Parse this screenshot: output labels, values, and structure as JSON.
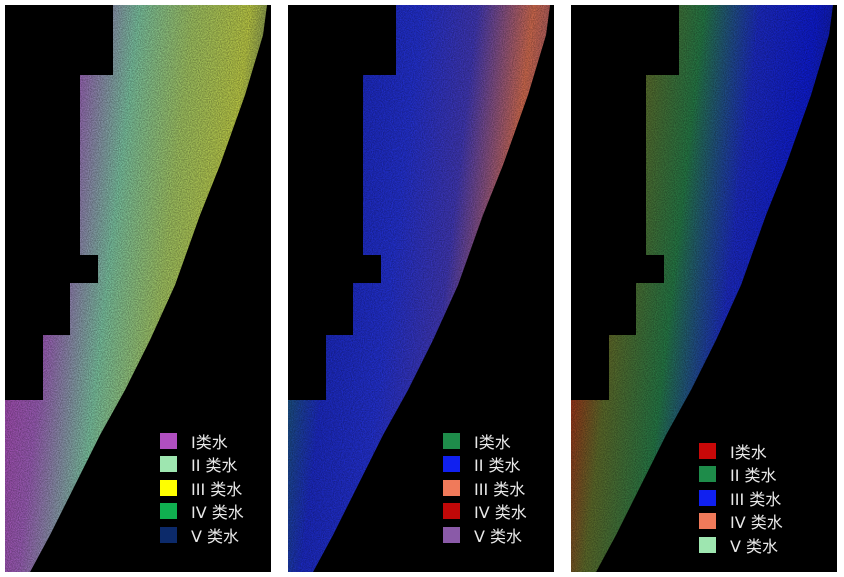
{
  "panels": [
    {
      "legend": [
        {
          "label": "I类水",
          "color": "#b04fc0"
        },
        {
          "label": "II 类水",
          "color": "#9ee6b0"
        },
        {
          "label": "III 类水",
          "color": "#ffff00"
        },
        {
          "label": "IV 类水",
          "color": "#10b050"
        },
        {
          "label": "V 类水",
          "color": "#0c2a6a"
        }
      ],
      "gradient": [
        "#c04cc8",
        "#b06ad0",
        "#8de0b8",
        "#b8e070",
        "#d8e850",
        "#2a4a70"
      ]
    },
    {
      "legend": [
        {
          "label": "I类水",
          "color": "#1e8c4a"
        },
        {
          "label": "II 类水",
          "color": "#1020f0"
        },
        {
          "label": "III 类水",
          "color": "#f07a5a"
        },
        {
          "label": "IV 类水",
          "color": "#c00808"
        },
        {
          "label": "V 类水",
          "color": "#8a5aa8"
        }
      ],
      "gradient": [
        "#1e7a60",
        "#2030e0",
        "#2838f0",
        "#4a40d0",
        "#f07a5a",
        "#7a4a8a"
      ]
    },
    {
      "legend": [
        {
          "label": "I类水",
          "color": "#c80808"
        },
        {
          "label": "II 类水",
          "color": "#1e8c4a"
        },
        {
          "label": "III 类水",
          "color": "#1020f0"
        },
        {
          "label": "IV 类水",
          "color": "#f07a5a"
        },
        {
          "label": "V 类水",
          "color": "#9ee6b0"
        }
      ],
      "gradient": [
        "#e01010",
        "#6a7a30",
        "#2a8a50",
        "#2030e0",
        "#1020f0",
        "#1a2080"
      ]
    }
  ]
}
